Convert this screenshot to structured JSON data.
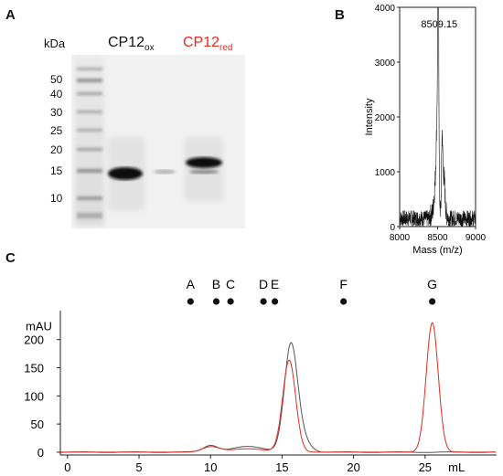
{
  "panel_a": {
    "label": "A",
    "kda_label": "kDa",
    "markers": [
      "50",
      "40",
      "30",
      "25",
      "20",
      "15",
      "10"
    ],
    "lane_ox": {
      "base": "CP12",
      "sub": "ox",
      "color": "#111111"
    },
    "lane_red": {
      "base": "CP12",
      "sub": "red",
      "color": "#e8281e"
    }
  },
  "panel_b": {
    "label": "B",
    "peak_label": "8509.15"
  },
  "panel_c": {
    "label": "C",
    "unit_label": "mAU",
    "x_unit": "mL",
    "standards": [
      {
        "label": "A",
        "x": 8.6
      },
      {
        "label": "B",
        "x": 10.4
      },
      {
        "label": "C",
        "x": 11.4
      },
      {
        "label": "D",
        "x": 13.7
      },
      {
        "label": "E",
        "x": 14.5
      },
      {
        "label": "F",
        "x": 19.3
      },
      {
        "label": "G",
        "x": 25.5
      }
    ]
  },
  "chart_data": [
    {
      "type": "line",
      "title": "",
      "xlabel": "Mass (m/z)",
      "ylabel": "Intensity",
      "xlim": [
        8000,
        9000
      ],
      "ylim": [
        0,
        4000
      ],
      "x_ticks": [
        8000,
        8500,
        9000
      ],
      "y_ticks": [
        0,
        1000,
        2000,
        3000,
        4000
      ],
      "annotation": {
        "text": "8509.15",
        "x": 8509.15,
        "y": 3500
      },
      "series": [
        {
          "color": "#111111",
          "peaks": [
            {
              "x": 8509.15,
              "y": 3500,
              "width": 6
            },
            {
              "x": 8500,
              "y": 2000,
              "width": 14
            },
            {
              "x": 8560,
              "y": 1450,
              "width": 8
            },
            {
              "x": 8585,
              "y": 700,
              "width": 12
            },
            {
              "x": 8470,
              "y": 500,
              "width": 18
            }
          ],
          "noise_level": 300
        }
      ]
    },
    {
      "type": "line",
      "title": "",
      "xlabel": "mL",
      "ylabel": "mAU",
      "xlim": [
        -0.5,
        30
      ],
      "ylim": [
        -5,
        245
      ],
      "x_ticks": [
        0,
        5,
        10,
        15,
        20,
        25
      ],
      "y_ticks": [
        0,
        50,
        100,
        150,
        200
      ],
      "grid": false,
      "series": [
        {
          "color": "#555555",
          "peaks": [
            {
              "x": 15.6,
              "y": 175,
              "width": 0.45
            },
            {
              "x": 16.2,
              "y": 30,
              "width": 0.6
            },
            {
              "x": 10.0,
              "y": 12,
              "width": 0.5
            },
            {
              "x": 12.7,
              "y": 10,
              "width": 1.2
            }
          ]
        },
        {
          "color": "#e8281e",
          "peaks": [
            {
              "x": 15.5,
              "y": 163,
              "width": 0.45
            },
            {
              "x": 25.5,
              "y": 230,
              "width": 0.42
            },
            {
              "x": 10.0,
              "y": 9,
              "width": 0.6
            },
            {
              "x": 12.6,
              "y": 6,
              "width": 1.3
            }
          ]
        }
      ]
    }
  ]
}
